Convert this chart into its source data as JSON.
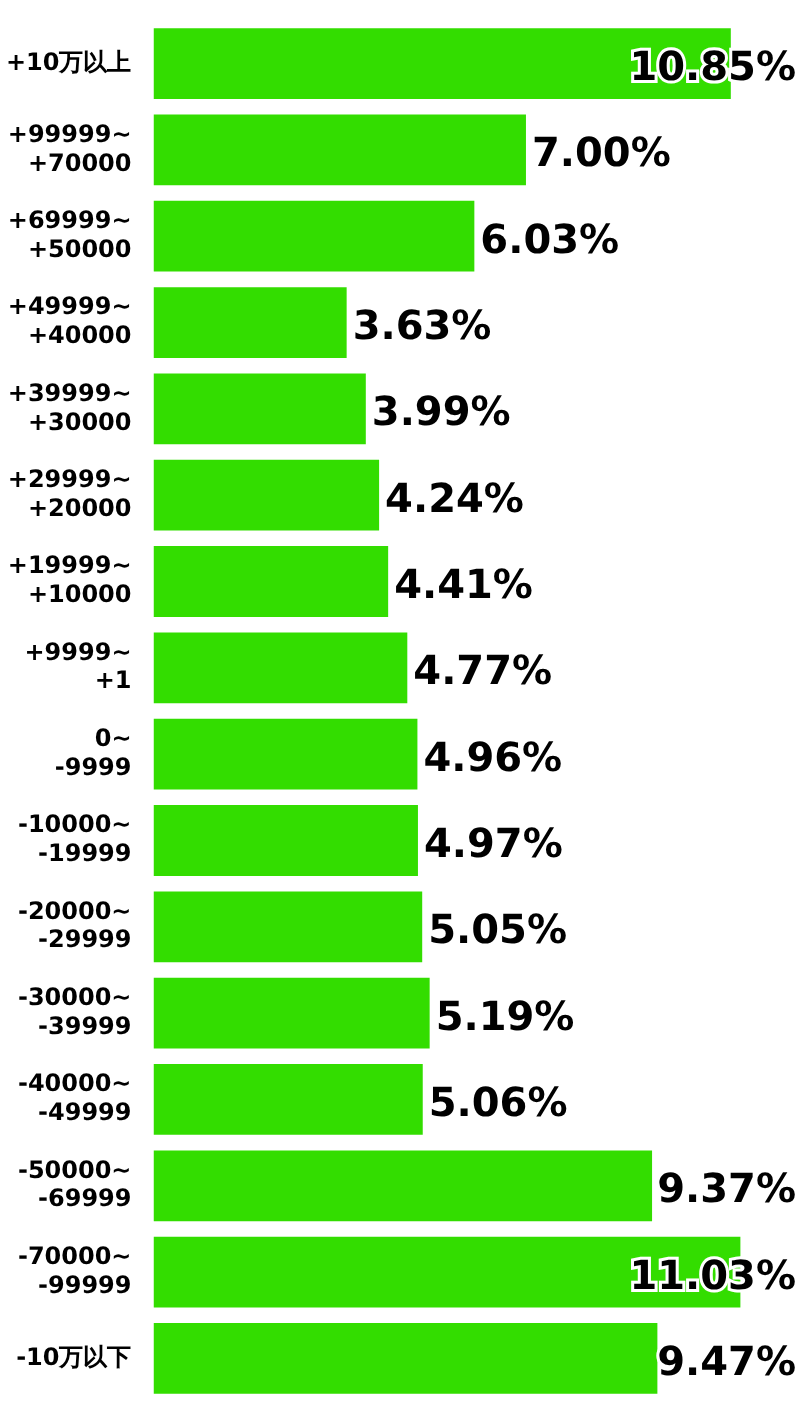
{
  "chart_data": {
    "type": "bar",
    "orientation": "horizontal",
    "color": "#33dd00",
    "categories": [
      "+10万以上",
      "+99999~+70000",
      "+69999~+50000",
      "+49999~+40000",
      "+39999~+30000",
      "+29999~+20000",
      "+19999~+10000",
      "+9999~+1",
      "0~-9999",
      "-10000~-19999",
      "-20000~-29999",
      "-30000~-39999",
      "-40000~-49999",
      "-50000~-69999",
      "-70000~-99999",
      "-10万以下"
    ],
    "values": [
      10.85,
      7.0,
      6.03,
      3.63,
      3.99,
      4.24,
      4.41,
      4.77,
      4.96,
      4.97,
      5.05,
      5.19,
      5.06,
      9.37,
      11.03,
      9.47
    ],
    "value_labels": [
      "10.85%",
      "7.00%",
      "6.03%",
      "3.63%",
      "3.99%",
      "4.24%",
      "4.41%",
      "4.77%",
      "4.96%",
      "4.97%",
      "5.05%",
      "5.19%",
      "5.06%",
      "9.37%",
      "11.03%",
      "9.47%"
    ],
    "grid": false,
    "legend": false
  }
}
